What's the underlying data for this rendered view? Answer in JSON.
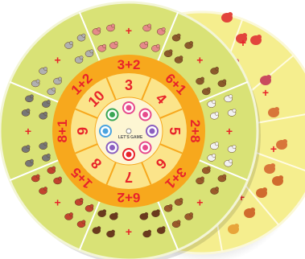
{
  "center": {
    "brand": "LET'S GAME"
  },
  "sectors": [
    {
      "equation": "6+1",
      "number": "4"
    },
    {
      "equation": "2+8",
      "number": "5"
    },
    {
      "equation": "3+1",
      "number": "6"
    },
    {
      "equation": "6+2",
      "number": "7"
    },
    {
      "equation": "1+5",
      "number": "8"
    },
    {
      "equation": "8+1",
      "number": "9"
    },
    {
      "equation": "1+2",
      "number": "10"
    },
    {
      "equation": "3+2",
      "number": "3"
    }
  ],
  "plus_sign": "+",
  "colors": {
    "outer_ring": "#d9e276",
    "orange_ring": "#f7a81d",
    "inner_ring": "#fbe48a",
    "center": "#fdf6d3",
    "red": "#e8242a",
    "back_disc": "#f5ee8e",
    "divider": "#ffffff"
  },
  "animals": [
    "monkey-icon",
    "sheep-icon",
    "bear-icon",
    "bull-icon",
    "cow-icon",
    "snail-icon",
    "elephant-icon",
    "pig-icon",
    "octopus-icon",
    "crab-icon",
    "flamingo-icon",
    "fish-icon"
  ]
}
